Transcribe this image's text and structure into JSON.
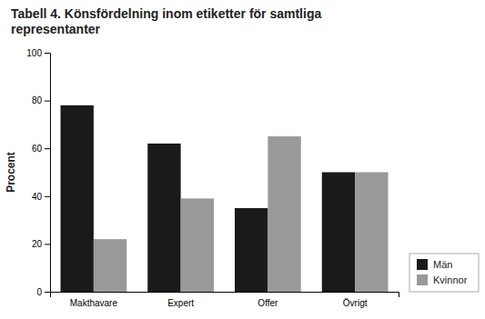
{
  "chart_data": {
    "type": "bar",
    "title": "Tabell 4. Könsfördelning inom etiketter för samtliga\nrepresentanter",
    "y_label": "Procent",
    "categories": [
      "Makthavare",
      "Expert",
      "Offer",
      "Övrigt"
    ],
    "series": [
      {
        "name": "Män",
        "color": "#1a1a1a",
        "values": [
          78,
          62,
          35,
          50
        ]
      },
      {
        "name": "Kvinnor",
        "color": "#999999",
        "values": [
          22,
          39,
          65,
          50
        ]
      }
    ],
    "ylim": [
      0,
      100
    ],
    "yticks": [
      0,
      20,
      40,
      60,
      80,
      100
    ],
    "grid": false,
    "legend": "lower right"
  }
}
